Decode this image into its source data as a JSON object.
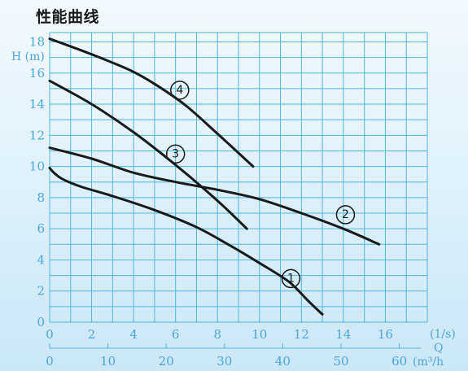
{
  "title": "性能曲线",
  "chart_data": {
    "type": "line",
    "ylabel": "H (m)",
    "xlabel": "(1/s)",
    "xlabel2": "Q",
    "xlabel3": "(m³/h",
    "x_ticks": [
      "0",
      "2",
      "4",
      "6",
      "8",
      "10",
      "12",
      "14",
      "16"
    ],
    "x2_ticks": [
      "0",
      "10",
      "20",
      "30",
      "40",
      "50",
      "60"
    ],
    "y_ticks": [
      "0",
      "2",
      "4",
      "6",
      "8",
      "10",
      "12",
      "14",
      "16",
      "18"
    ],
    "xlim": [
      0,
      18
    ],
    "ylim": [
      0,
      18.6
    ],
    "x2_per_x": 3.6,
    "grid": true,
    "series": [
      {
        "name": "1",
        "x": [
          0,
          0.2,
          0.6,
          1.5,
          3,
          5,
          7,
          8.5,
          10,
          11.4,
          12.3,
          13.0
        ],
        "y": [
          9.9,
          9.6,
          9.2,
          8.7,
          8.1,
          7.2,
          6.1,
          5.0,
          3.8,
          2.6,
          1.4,
          0.5
        ]
      },
      {
        "name": "2",
        "x": [
          0,
          2,
          4,
          6,
          8,
          10,
          12,
          14,
          15.7
        ],
        "y": [
          11.2,
          10.5,
          9.6,
          9.0,
          8.5,
          7.9,
          7.0,
          6.0,
          5.0
        ]
      },
      {
        "name": "3",
        "x": [
          0,
          2,
          4,
          6,
          8,
          9.4
        ],
        "y": [
          15.5,
          14.0,
          12.2,
          10.1,
          7.8,
          6.0
        ]
      },
      {
        "name": "4",
        "x": [
          0,
          2,
          3.8,
          5,
          6.5,
          8,
          9.7
        ],
        "y": [
          18.2,
          17.2,
          16.2,
          15.3,
          13.9,
          12.1,
          10.0
        ]
      }
    ],
    "labels": [
      {
        "text": "1",
        "x": 11.5,
        "y": 2.8
      },
      {
        "text": "2",
        "x": 14.1,
        "y": 6.9
      },
      {
        "text": "3",
        "x": 6.0,
        "y": 10.8
      },
      {
        "text": "4",
        "x": 6.2,
        "y": 14.9
      }
    ]
  }
}
